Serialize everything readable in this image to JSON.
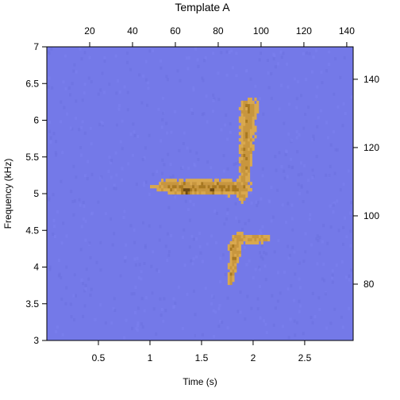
{
  "chart_data": {
    "type": "heatmap",
    "title": "Template A",
    "xlabel": "Time (s)",
    "ylabel": "Frequency (kHz)",
    "xlim": [
      0.0,
      2.97
    ],
    "ylim": [
      3.0,
      7.0
    ],
    "x_ticks": [
      0.5,
      1,
      1.5,
      2,
      2.5
    ],
    "x_tick_labels": [
      "0.5",
      "1",
      "1.5",
      "2",
      "2.5"
    ],
    "y_ticks": [
      3,
      3.5,
      4,
      4.5,
      5,
      5.5,
      6,
      6.5,
      7
    ],
    "y_tick_labels": [
      "3",
      "3.5",
      "4",
      "4.5",
      "5",
      "5.5",
      "6",
      "6.5",
      "7"
    ],
    "top_axis": {
      "ticks": [
        20,
        40,
        60,
        80,
        100,
        120,
        140
      ],
      "tick_labels": [
        "20",
        "40",
        "60",
        "80",
        "100",
        "120",
        "140"
      ],
      "range": [
        0,
        143
      ]
    },
    "right_axis": {
      "ticks": [
        80,
        100,
        120,
        140
      ],
      "tick_labels": [
        "80",
        "100",
        "120",
        "140"
      ],
      "range": [
        63.5,
        149.5
      ]
    },
    "background_color": "#7479e8",
    "colors": {
      "low": "#d9a84e",
      "mid": "#a87820",
      "high": "#6e4a12"
    },
    "features": [
      {
        "name": "horizontal-band",
        "t": [
          0.88,
          2.0
        ],
        "f": [
          4.85,
          5.35
        ],
        "peaks": [
          {
            "t": 1.34,
            "f": 5.02
          },
          {
            "t": 1.58,
            "f": 5.02
          }
        ]
      },
      {
        "name": "rising-sweep",
        "t": [
          1.75,
          2.2
        ],
        "f": [
          4.75,
          6.4
        ]
      },
      {
        "name": "lower-sweep",
        "t": [
          1.72,
          2.2
        ],
        "f": [
          3.6,
          4.5
        ]
      }
    ]
  }
}
